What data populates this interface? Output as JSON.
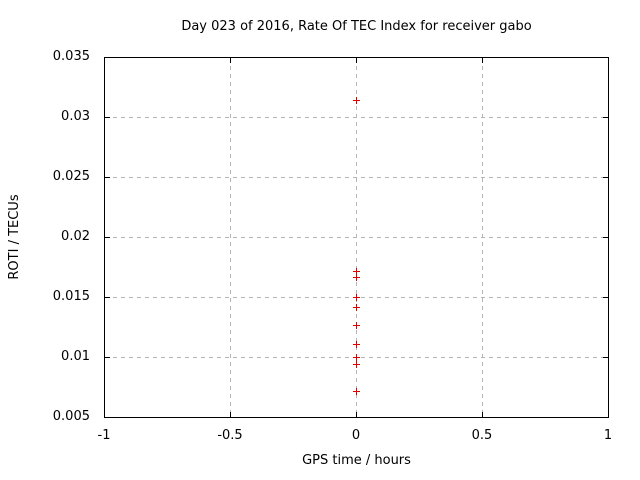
{
  "chart_data": {
    "type": "scatter",
    "title": "Day 023 of 2016, Rate Of TEC Index for receiver gabo",
    "xlabel": "GPS time / hours",
    "ylabel": "ROTI / TECUs",
    "xlim": [
      -1,
      1
    ],
    "ylim": [
      0.005,
      0.035
    ],
    "grid": true,
    "legend_position": "none",
    "xticks": {
      "values": [
        -1,
        -0.5,
        0,
        0.5,
        1
      ],
      "labels": [
        "-1",
        "-0.5",
        "0",
        "0.5",
        "1"
      ]
    },
    "yticks": {
      "values": [
        0.005,
        0.01,
        0.015,
        0.02,
        0.025,
        0.03,
        0.035
      ],
      "labels": [
        "0.005",
        "0.01",
        "0.015",
        "0.02",
        "0.025",
        "0.03",
        "0.035"
      ]
    },
    "series": [
      {
        "name": "ROTI",
        "marker": "plus",
        "color": "#e00000",
        "points": [
          {
            "x": 0,
            "y": 0.0314
          },
          {
            "x": 0,
            "y": 0.0172
          },
          {
            "x": 0,
            "y": 0.0167
          },
          {
            "x": 0,
            "y": 0.015
          },
          {
            "x": 0,
            "y": 0.0142
          },
          {
            "x": 0,
            "y": 0.0127
          },
          {
            "x": 0,
            "y": 0.0111
          },
          {
            "x": 0,
            "y": 0.01
          },
          {
            "x": 0,
            "y": 0.0094
          },
          {
            "x": 0,
            "y": 0.0072
          }
        ]
      }
    ]
  },
  "colors": {
    "background": "#ffffff",
    "border": "#000000",
    "grid": "#b4b4b4",
    "marker": "#e00000",
    "text": "#000000"
  }
}
